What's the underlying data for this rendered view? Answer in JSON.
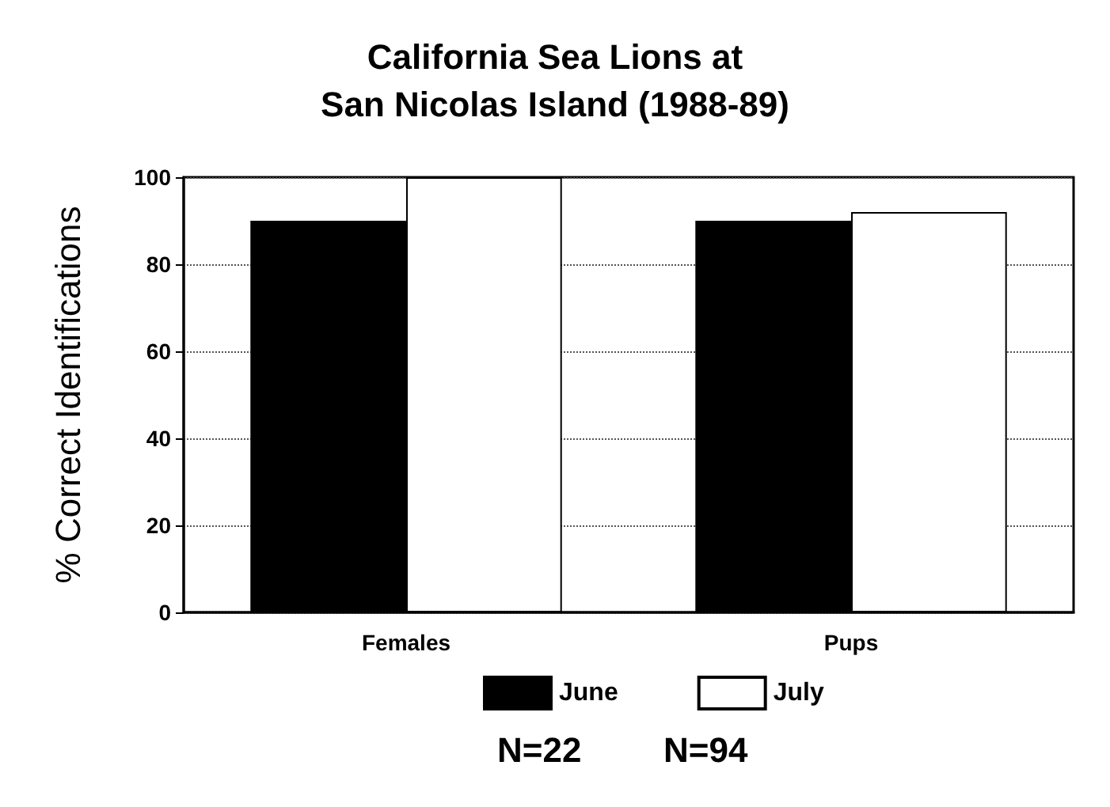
{
  "chart_data": {
    "type": "bar",
    "title": "California Sea Lions at\nSan Nicolas Island (1988-89)",
    "ylabel": "% Correct Identifications",
    "categories": [
      "Females",
      "Pups"
    ],
    "series": [
      {
        "name": "June",
        "color": "#000000",
        "values": [
          90,
          90
        ]
      },
      {
        "name": "July",
        "color": "#ffffff",
        "values": [
          100,
          92
        ]
      }
    ],
    "ylim": [
      0,
      100
    ],
    "yticks": [
      0,
      20,
      40,
      60,
      80,
      100
    ],
    "grid": "y",
    "legend": "bottom",
    "annotations": [
      "N=22",
      "N=94"
    ]
  }
}
